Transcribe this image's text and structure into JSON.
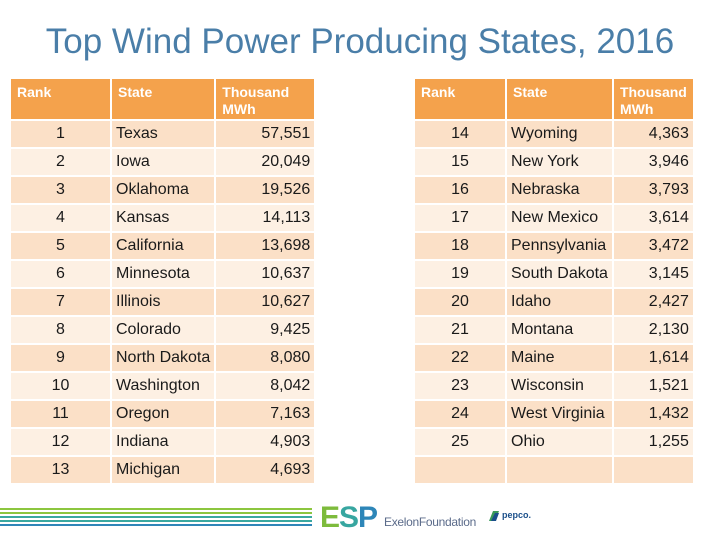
{
  "title": "Top Wind Power Producing States, 2016",
  "headers": {
    "rank": "Rank",
    "state": "State",
    "value_line1": "Thousand",
    "value_line2": "MWh"
  },
  "left_rows": [
    {
      "rank": "1",
      "state": "Texas",
      "value": "57,551"
    },
    {
      "rank": "2",
      "state": "Iowa",
      "value": "20,049"
    },
    {
      "rank": "3",
      "state": "Oklahoma",
      "value": "19,526"
    },
    {
      "rank": "4",
      "state": "Kansas",
      "value": "14,113"
    },
    {
      "rank": "5",
      "state": "California",
      "value": "13,698"
    },
    {
      "rank": "6",
      "state": "Minnesota",
      "value": "10,637"
    },
    {
      "rank": "7",
      "state": "Illinois",
      "value": "10,627"
    },
    {
      "rank": "8",
      "state": "Colorado",
      "value": "9,425"
    },
    {
      "rank": "9",
      "state": "North Dakota",
      "value": "8,080"
    },
    {
      "rank": "10",
      "state": "Washington",
      "value": "8,042"
    },
    {
      "rank": "11",
      "state": "Oregon",
      "value": "7,163"
    },
    {
      "rank": "12",
      "state": "Indiana",
      "value": "4,903"
    },
    {
      "rank": "13",
      "state": "Michigan",
      "value": "4,693"
    }
  ],
  "right_rows": [
    {
      "rank": "14",
      "state": "Wyoming",
      "value": "4,363"
    },
    {
      "rank": "15",
      "state": "New York",
      "value": "3,946"
    },
    {
      "rank": "16",
      "state": "Nebraska",
      "value": "3,793"
    },
    {
      "rank": "17",
      "state": "New Mexico",
      "value": "3,614"
    },
    {
      "rank": "18",
      "state": "Pennsylvania",
      "value": "3,472"
    },
    {
      "rank": "19",
      "state": "South Dakota",
      "value": "3,145"
    },
    {
      "rank": "20",
      "state": "Idaho",
      "value": "2,427"
    },
    {
      "rank": "21",
      "state": "Montana",
      "value": "2,130"
    },
    {
      "rank": "22",
      "state": "Maine",
      "value": "1,614"
    },
    {
      "rank": "23",
      "state": "Wisconsin",
      "value": "1,521"
    },
    {
      "rank": "24",
      "state": "West Virginia",
      "value": "1,432"
    },
    {
      "rank": "25",
      "state": "Ohio",
      "value": "1,255"
    },
    {
      "rank": "",
      "state": "",
      "value": ""
    }
  ],
  "footer": {
    "logo_esp_e": "E",
    "logo_esp_s": "S",
    "logo_esp_p": "P",
    "logo_exelon": "ExelonFoundation",
    "logo_pepco": "pepco."
  },
  "colors": {
    "title": "#4a7ea8",
    "header": "#f4a24c",
    "row_dark": "#fbe0c7",
    "row_light": "#fdf0e3",
    "stripe_green": "#8cc63f",
    "stripe_teal": "#3aa8a0",
    "stripe_blue": "#2f86b8"
  }
}
